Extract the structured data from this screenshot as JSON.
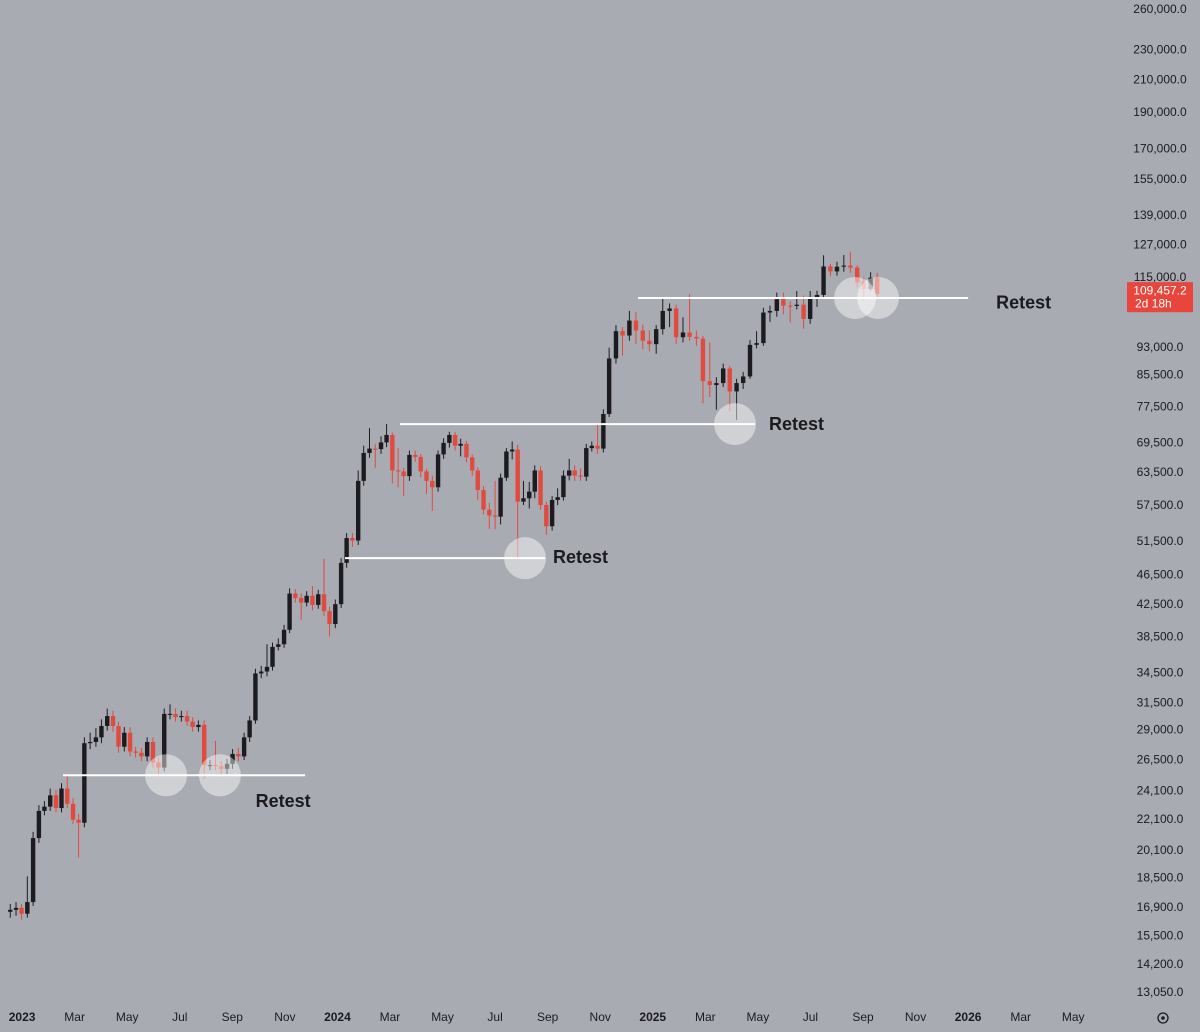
{
  "chart_data": {
    "type": "candlestick",
    "log_scale": true,
    "up_color": "#1c1c20",
    "down_color": "#e04a3f",
    "x": [
      -0.45,
      -0.23,
      -0.02,
      0.2,
      0.42,
      0.64,
      0.85,
      1.07,
      1.29,
      1.5,
      1.72,
      1.94,
      2.15,
      2.37,
      2.59,
      2.81,
      3.02,
      3.24,
      3.46,
      3.67,
      3.89,
      4.11,
      4.32,
      4.54,
      4.76,
      4.98,
      5.19,
      5.41,
      5.63,
      5.84,
      6.06,
      6.28,
      6.49,
      6.71,
      6.93,
      7.15,
      7.36,
      7.58,
      7.8,
      8.01,
      8.23,
      8.45,
      8.66,
      8.88,
      9.1,
      9.32,
      9.53,
      9.75,
      9.97,
      10.18,
      10.4,
      10.62,
      10.83,
      11.05,
      11.27,
      11.49,
      11.7,
      11.92,
      12.14,
      12.35,
      12.57,
      12.79,
      13,
      13.22,
      13.44,
      13.66,
      13.87,
      14.09,
      14.31,
      14.52,
      14.74,
      14.96,
      15.17,
      15.39,
      15.61,
      15.83,
      16.04,
      16.26,
      16.48,
      16.69,
      16.91,
      17.13,
      17.34,
      17.56,
      17.78,
      18,
      18.21,
      18.43,
      18.65,
      18.86,
      19.08,
      19.3,
      19.51,
      19.73,
      19.95,
      20.17,
      20.38,
      20.6,
      20.82,
      21.03,
      21.25,
      21.47,
      21.68,
      21.9,
      22.12,
      22.34,
      22.6,
      22.85,
      23.11,
      23.36,
      23.62,
      23.87,
      24.13,
      24.38,
      24.64,
      24.89,
      25.15,
      25.4,
      25.66,
      25.91,
      26.17,
      26.42,
      26.68,
      26.93,
      27.19,
      27.44,
      27.7,
      27.95,
      28.21,
      28.46,
      28.72,
      28.97,
      29.23,
      29.48,
      29.74,
      29.99,
      30.25,
      30.5,
      30.76,
      31.01,
      31.27,
      31.52,
      31.78,
      32.03,
      32.29,
      32.54
    ],
    "open": [
      16700,
      16800,
      16900,
      16600,
      17200,
      20900,
      22700,
      23000,
      23800,
      22900,
      24300,
      23200,
      22100,
      21900,
      27900,
      28000,
      28400,
      29400,
      30300,
      29400,
      27600,
      28800,
      27200,
      27100,
      26800,
      28000,
      26300,
      25900,
      30500,
      30500,
      30200,
      30300,
      29800,
      29300,
      29500,
      26100,
      26100,
      26000,
      25800,
      26200,
      27000,
      26800,
      28400,
      29900,
      34500,
      34700,
      35200,
      37400,
      37700,
      39400,
      44000,
      43400,
      42800,
      43700,
      42500,
      43900,
      41700,
      40100,
      42600,
      48300,
      52100,
      51700,
      62000,
      67500,
      68400,
      68300,
      69700,
      71300,
      64000,
      63800,
      62900,
      67100,
      66700,
      63800,
      62000,
      60800,
      67200,
      69600,
      71300,
      69000,
      69400,
      66600,
      64000,
      60300,
      56800,
      55800,
      55600,
      62600,
      67800,
      68200,
      58200,
      58800,
      60000,
      64000,
      57600,
      54000,
      58500,
      59000,
      63000,
      64000,
      63000,
      62800,
      68500,
      69000,
      68400,
      76000,
      90000,
      97800,
      96500,
      101000,
      98000,
      95000,
      94000,
      98400,
      104000,
      104800,
      96000,
      97400,
      96100,
      95600,
      84000,
      83000,
      83500,
      87300,
      81400,
      83500,
      85200,
      93800,
      94300,
      103500,
      104000,
      107800,
      105700,
      105600,
      106000,
      101500,
      108300,
      109200,
      119100,
      117300,
      119000,
      119400,
      118700,
      113500,
      111200,
      115100
    ],
    "high": [
      17100,
      17200,
      17100,
      18600,
      21300,
      23100,
      23400,
      24300,
      24200,
      24700,
      25200,
      23600,
      22500,
      28400,
      28800,
      29200,
      30000,
      31000,
      30800,
      29800,
      29300,
      29300,
      27600,
      27500,
      28400,
      28400,
      26700,
      31000,
      31400,
      31000,
      30800,
      30800,
      30200,
      29900,
      29900,
      26500,
      28100,
      26400,
      26600,
      27400,
      27500,
      28800,
      30300,
      35000,
      35300,
      37700,
      37900,
      38400,
      40000,
      44700,
      44600,
      44000,
      44300,
      45000,
      44500,
      48900,
      42300,
      43200,
      49000,
      52900,
      52900,
      64000,
      69000,
      72800,
      69400,
      71000,
      73700,
      71800,
      68500,
      64500,
      68000,
      68000,
      67300,
      64300,
      63000,
      68000,
      70600,
      72000,
      71900,
      70500,
      70000,
      67200,
      64600,
      61000,
      58000,
      62000,
      63400,
      68500,
      69900,
      69200,
      62000,
      61800,
      65000,
      64800,
      58200,
      59200,
      60600,
      64000,
      66300,
      65000,
      64400,
      69400,
      69900,
      73500,
      77100,
      93000,
      99600,
      99000,
      104000,
      103600,
      99800,
      98000,
      99600,
      108300,
      106400,
      106000,
      102000,
      109500,
      98000,
      96400,
      94500,
      85000,
      88600,
      88000,
      84600,
      86400,
      95200,
      97800,
      105000,
      105700,
      110000,
      110000,
      107100,
      110500,
      109000,
      110500,
      110600,
      123200,
      120000,
      120800,
      123300,
      124500,
      119500,
      115200,
      117000,
      116800
    ],
    "low": [
      16400,
      16500,
      16300,
      16400,
      17000,
      20600,
      22400,
      22700,
      22600,
      22600,
      22900,
      21800,
      19700,
      21600,
      27400,
      27600,
      27900,
      29000,
      28900,
      27100,
      27200,
      26800,
      26700,
      26400,
      26400,
      25900,
      25400,
      25600,
      30000,
      29800,
      29800,
      29400,
      28900,
      28900,
      25000,
      25700,
      25700,
      25200,
      25400,
      25800,
      26400,
      26500,
      28000,
      29600,
      34000,
      34200,
      34800,
      37000,
      37300,
      39000,
      42800,
      40600,
      42300,
      41800,
      42000,
      41100,
      38600,
      39600,
      42100,
      47600,
      50700,
      51000,
      61100,
      66500,
      64500,
      67300,
      68700,
      61500,
      60800,
      59200,
      62000,
      65700,
      62700,
      59600,
      56600,
      60000,
      66300,
      68600,
      68000,
      66800,
      65600,
      63000,
      58500,
      56000,
      53600,
      53500,
      54300,
      62000,
      66200,
      49000,
      57600,
      57000,
      58800,
      56800,
      52600,
      53300,
      57600,
      58400,
      62100,
      62000,
      62000,
      62000,
      67800,
      67300,
      67600,
      75300,
      88600,
      90800,
      95000,
      94000,
      92500,
      92000,
      91300,
      96800,
      99000,
      94000,
      94500,
      95000,
      93500,
      78500,
      80000,
      77000,
      82500,
      76600,
      74600,
      82000,
      84600,
      92800,
      93500,
      100600,
      102200,
      103000,
      100400,
      104500,
      98500,
      100000,
      105300,
      108400,
      115600,
      115800,
      117200,
      116800,
      111800,
      107400,
      110600,
      108600
    ],
    "close": [
      16800,
      16900,
      16600,
      17200,
      20900,
      22700,
      23000,
      23800,
      22900,
      24300,
      23200,
      22100,
      21900,
      27900,
      28000,
      28400,
      29400,
      30300,
      29400,
      27600,
      28800,
      27200,
      27100,
      26800,
      28000,
      26300,
      25900,
      30500,
      30500,
      30200,
      30300,
      29800,
      29300,
      29500,
      26100,
      26100,
      26000,
      25800,
      26200,
      27000,
      26800,
      28400,
      29900,
      34500,
      34700,
      35200,
      37400,
      37700,
      39400,
      44000,
      43400,
      42800,
      43700,
      42500,
      43900,
      41700,
      40100,
      42600,
      48300,
      52100,
      51700,
      62000,
      67500,
      68400,
      68300,
      69700,
      71300,
      64000,
      63800,
      62900,
      67100,
      66700,
      63800,
      62000,
      60800,
      67200,
      69600,
      71300,
      69000,
      69400,
      66600,
      64000,
      60300,
      56800,
      55800,
      55600,
      62600,
      67800,
      68200,
      58200,
      58800,
      60000,
      64000,
      57600,
      54000,
      58500,
      59000,
      63000,
      64000,
      63000,
      62800,
      68500,
      69000,
      68400,
      76000,
      90000,
      97800,
      96500,
      101000,
      98000,
      95000,
      94000,
      98400,
      104000,
      104800,
      96000,
      97400,
      96100,
      95600,
      84000,
      83000,
      83500,
      87300,
      81400,
      83500,
      85200,
      93800,
      94300,
      103500,
      104000,
      107800,
      105700,
      105600,
      106000,
      101500,
      108300,
      109200,
      119100,
      117300,
      119000,
      119400,
      118700,
      113500,
      111200,
      115100,
      109457.2
    ],
    "xlim": [
      -0.84,
      41.78
    ],
    "xticks": [
      {
        "value": 0,
        "label": "2023"
      },
      {
        "value": 2,
        "label": "Mar"
      },
      {
        "value": 4,
        "label": "May"
      },
      {
        "value": 6,
        "label": "Jul"
      },
      {
        "value": 8,
        "label": "Sep"
      },
      {
        "value": 10,
        "label": "Nov"
      },
      {
        "value": 12,
        "label": "2024"
      },
      {
        "value": 14,
        "label": "Mar"
      },
      {
        "value": 16,
        "label": "May"
      },
      {
        "value": 18,
        "label": "Jul"
      },
      {
        "value": 20,
        "label": "Sep"
      },
      {
        "value": 22,
        "label": "Nov"
      },
      {
        "value": 24,
        "label": "2025"
      },
      {
        "value": 26,
        "label": "Mar"
      },
      {
        "value": 28,
        "label": "May"
      },
      {
        "value": 30,
        "label": "Jul"
      },
      {
        "value": 32,
        "label": "Sep"
      },
      {
        "value": 34,
        "label": "Nov"
      },
      {
        "value": 36,
        "label": "2026"
      },
      {
        "value": 38,
        "label": "Mar"
      },
      {
        "value": 40,
        "label": "May"
      }
    ],
    "ylim": [
      12650,
      268000
    ],
    "yticks": [
      {
        "value": 260000,
        "label": "260,000.0"
      },
      {
        "value": 230000,
        "label": "230,000.0"
      },
      {
        "value": 210000,
        "label": "210,000.0"
      },
      {
        "value": 190000,
        "label": "190,000.0"
      },
      {
        "value": 170000,
        "label": "170,000.0"
      },
      {
        "value": 155000,
        "label": "155,000.0"
      },
      {
        "value": 139000,
        "label": "139,000.0"
      },
      {
        "value": 127000,
        "label": "127,000.0"
      },
      {
        "value": 115000,
        "label": "115,000.0"
      },
      {
        "value": 93000,
        "label": "93,000.0"
      },
      {
        "value": 85500,
        "label": "85,500.0"
      },
      {
        "value": 77500,
        "label": "77,500.0"
      },
      {
        "value": 69500,
        "label": "69,500.0"
      },
      {
        "value": 63500,
        "label": "63,500.0"
      },
      {
        "value": 57500,
        "label": "57,500.0"
      },
      {
        "value": 51500,
        "label": "51,500.0"
      },
      {
        "value": 46500,
        "label": "46,500.0"
      },
      {
        "value": 42500,
        "label": "42,500.0"
      },
      {
        "value": 38500,
        "label": "38,500.0"
      },
      {
        "value": 34500,
        "label": "34,500.0"
      },
      {
        "value": 31500,
        "label": "31,500.0"
      },
      {
        "value": 29000,
        "label": "29,000.0"
      },
      {
        "value": 26500,
        "label": "26,500.0"
      },
      {
        "value": 24100,
        "label": "24,100.0"
      },
      {
        "value": 22100,
        "label": "22,100.0"
      },
      {
        "value": 20100,
        "label": "20,100.0"
      },
      {
        "value": 18500,
        "label": "18,500.0"
      },
      {
        "value": 16900,
        "label": "16,900.0"
      },
      {
        "value": 15500,
        "label": "15,500.0"
      },
      {
        "value": 14200,
        "label": "14,200.0"
      },
      {
        "value": 13050,
        "label": "13,050.0"
      }
    ],
    "last_price": {
      "value": 109457.2,
      "label": "109,457.2"
    },
    "countdown": "2d 18h",
    "annotations": [
      {
        "text": "Retest",
        "level": 25300,
        "x_start": 1.56,
        "x_end": 10.77,
        "circles": [
          5.48,
          7.53
        ]
      },
      {
        "text": "Retest",
        "level": 49000,
        "x_start": 12.29,
        "x_end": 19.9,
        "circles": [
          19.14
        ]
      },
      {
        "text": "Retest",
        "level": 73700,
        "x_start": 14.38,
        "x_end": 27.89,
        "circles": [
          27.13
        ]
      },
      {
        "text": "Retest",
        "level": 108200,
        "x_start": 23.44,
        "x_end": 36.0,
        "circles": [
          31.7,
          32.57
        ]
      }
    ]
  }
}
